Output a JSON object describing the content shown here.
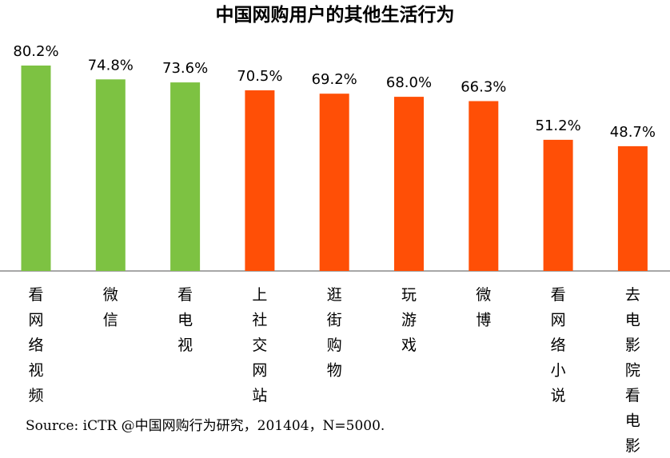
{
  "chart_data": {
    "type": "bar",
    "title": "中国网购用户的其他生活行为",
    "categories": [
      "看网络视频",
      "微信",
      "看电视",
      "上社交网站",
      "逛街购物",
      "玩游戏",
      "微博",
      "看网络小说",
      "去电影院看电影"
    ],
    "values": [
      80.2,
      74.8,
      73.6,
      70.5,
      69.2,
      68.0,
      66.3,
      51.2,
      48.7
    ],
    "value_labels": [
      "80.2%",
      "74.8%",
      "73.6%",
      "70.5%",
      "69.2%",
      "68.0%",
      "66.3%",
      "51.2%",
      "48.7%"
    ],
    "colors": [
      "#7DC242",
      "#7DC242",
      "#7DC242",
      "#FF4F06",
      "#FF4F06",
      "#FF4F06",
      "#FF4F06",
      "#FF4F06",
      "#FF4F06"
    ],
    "xlabel": "",
    "ylabel": "",
    "ylim": [
      0,
      100
    ],
    "grid": false,
    "legend": "none",
    "source": "Source: iCTR @中国网购行为研究，201404，N=5000."
  }
}
